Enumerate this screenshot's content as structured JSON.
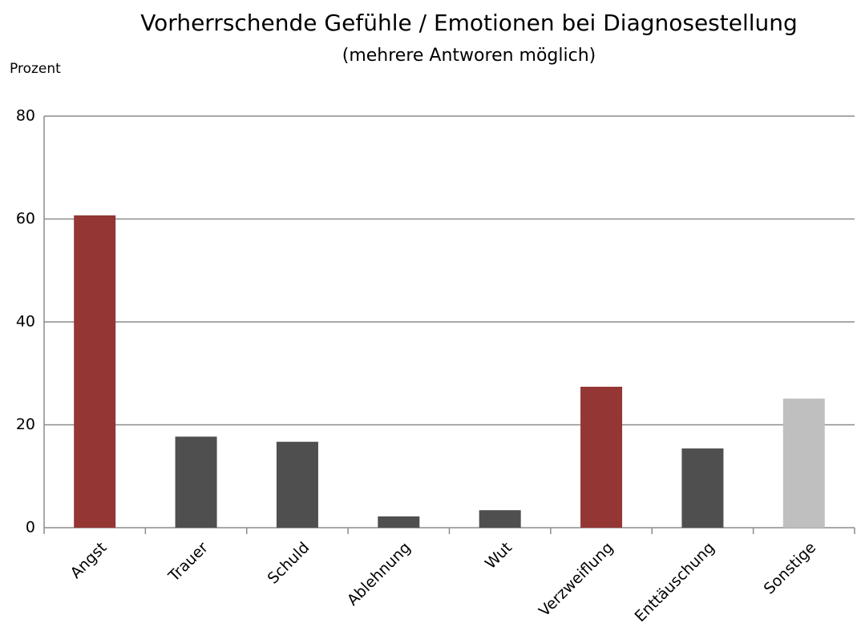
{
  "chart_data": {
    "type": "bar",
    "title": "Vorherrschende  Gefühle / Emotionen bei Diagnosestellung",
    "subtitle": "(mehrere Antworen möglich)",
    "y_label": "Prozent",
    "categories": [
      "Angst",
      "Trauer",
      "Schuld",
      "Ablehnung",
      "Wut",
      "Verzweiflung",
      "Enttäuschung",
      "Sonstige"
    ],
    "values": [
      60.7,
      17.7,
      16.7,
      2.2,
      3.4,
      27.4,
      15.4,
      25.1
    ],
    "colors": [
      "#943634",
      "#4f4f4f",
      "#4f4f4f",
      "#4f4f4f",
      "#4f4f4f",
      "#943634",
      "#4f4f4f",
      "#bfbfbf"
    ],
    "ylim": [
      0,
      80
    ],
    "yticks": [
      0,
      20,
      40,
      60,
      80
    ],
    "grid": true
  }
}
